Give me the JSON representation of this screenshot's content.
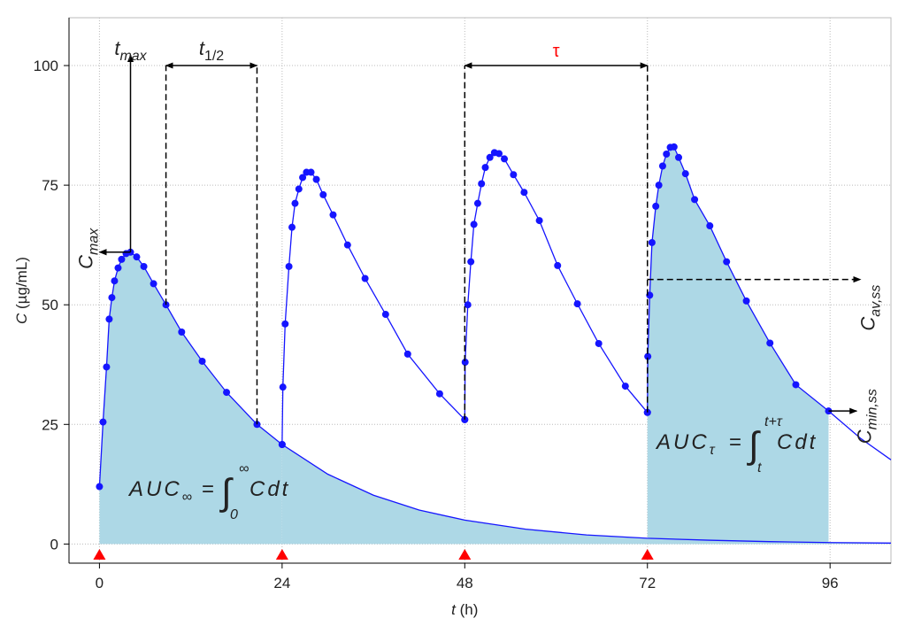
{
  "chart_data": {
    "type": "line",
    "x_label": {
      "symbol": "t",
      "unit": "(h)"
    },
    "y_label": {
      "symbol": "C",
      "unit": "(µg/mL)"
    },
    "xlim": [
      -4,
      104
    ],
    "ylim": [
      -4,
      110
    ],
    "xticks": [
      0,
      24,
      48,
      72,
      96
    ],
    "yticks": [
      0,
      25,
      50,
      75,
      100
    ],
    "grid": true,
    "fill_color": "#add8e6",
    "series": [
      {
        "color": "#1515ff",
        "markers": true,
        "fill": true,
        "x": [
          0,
          0.47,
          0.93,
          1.28,
          1.63,
          1.98,
          2.45,
          2.91,
          3.5,
          4.08,
          4.89,
          5.83,
          7.11,
          8.74,
          10.8,
          13.5,
          16.7,
          20.7,
          24
        ],
        "values": [
          12,
          25.5,
          37,
          47,
          51.5,
          55,
          57.7,
          59.5,
          60.7,
          61,
          60,
          58,
          54.4,
          50,
          44.3,
          38.2,
          31.7,
          25,
          20.8
        ]
      },
      {
        "color": "#1515ff",
        "markers": true,
        "fill": false,
        "x": [
          24,
          24.1,
          24.4,
          24.9,
          25.3,
          25.7,
          26.2,
          26.7,
          27.2,
          27.8,
          28.5,
          29.4,
          30.7,
          32.6,
          34.9,
          37.6,
          40.5,
          44.7,
          48
        ],
        "values": [
          20.8,
          32.8,
          46,
          58,
          66.2,
          71.2,
          74.2,
          76.6,
          77.7,
          77.7,
          76.2,
          73,
          68.8,
          62.5,
          55.5,
          48,
          39.7,
          31.4,
          26
        ]
      },
      {
        "color": "#1515ff",
        "markers": true,
        "fill": false,
        "x": [
          48,
          48.05,
          48.4,
          48.8,
          49.2,
          49.7,
          50.2,
          50.7,
          51.3,
          51.9,
          52.5,
          53.2,
          54.4,
          55.8,
          57.8,
          60.2,
          62.8,
          65.6,
          69.1,
          72
        ],
        "values": [
          26,
          38,
          50,
          59,
          66.8,
          71.2,
          75.3,
          78.7,
          80.8,
          81.8,
          81.6,
          80.5,
          77.2,
          73.5,
          67.6,
          58.2,
          50.2,
          41.9,
          33,
          27.5
        ]
      },
      {
        "color": "#1515ff",
        "markers": true,
        "fill": true,
        "x": [
          72,
          72.05,
          72.3,
          72.6,
          73.1,
          73.5,
          74,
          74.5,
          75,
          75.5,
          76.1,
          77,
          78.2,
          80.2,
          82.4,
          85,
          88.1,
          91.5,
          95.8
        ],
        "values": [
          27.5,
          39.2,
          52,
          63,
          70.6,
          75,
          79,
          81.5,
          82.9,
          83,
          80.8,
          77.4,
          72,
          66.5,
          59,
          50.8,
          42,
          33.3,
          27.8
        ]
      },
      {
        "color": "#1515ff",
        "markers": false,
        "fill": true,
        "x": [
          24,
          30,
          36,
          42,
          48,
          56,
          64,
          72,
          80,
          88,
          96,
          104
        ],
        "values": [
          20.8,
          14.6,
          10.2,
          7.1,
          5,
          3.1,
          1.9,
          1.2,
          0.8,
          0.5,
          0.3,
          0.2
        ]
      },
      {
        "color": "#1515ff",
        "markers": false,
        "fill": false,
        "x": [
          95.8,
          100,
          104
        ],
        "values": [
          27.8,
          22.1,
          17.6
        ]
      }
    ],
    "doses": [
      0,
      24,
      48,
      72
    ],
    "dose_color": "#ff0000",
    "annotations": {
      "cmax": {
        "label": "C",
        "sub": "max",
        "x": 4.08,
        "y": 61
      },
      "tmax": {
        "label": "t",
        "sub": "max",
        "x": 4.08,
        "y": 100
      },
      "half_life": {
        "label": "t",
        "sub": "1/2",
        "x": [
          8.74,
          20.7
        ],
        "y": [
          50,
          25
        ],
        "bar_y": 100
      },
      "tau": {
        "label": "τ",
        "color": "#ff0000",
        "x": [
          48,
          72
        ],
        "y": [
          26,
          27.5
        ],
        "bar_y": 100
      },
      "cav": {
        "label": "C",
        "sub": "av,ss",
        "x": [
          72,
          100
        ],
        "y": 55.3
      },
      "cmin": {
        "label": "C",
        "sub": "min,ss",
        "x": [
          95.8,
          99.5
        ],
        "y": 27.8
      }
    },
    "formulas": [
      {
        "lhs": "AUC",
        "lhs_sub": "∞",
        "eq": "=",
        "int": "∫",
        "lower": "0",
        "upper": "∞",
        "integrand": "Cdt"
      },
      {
        "lhs": "AUC",
        "lhs_sub": "τ",
        "eq": "=",
        "int": "∫",
        "lower": "t",
        "upper": "t+τ",
        "integrand": "Cdt"
      }
    ]
  }
}
